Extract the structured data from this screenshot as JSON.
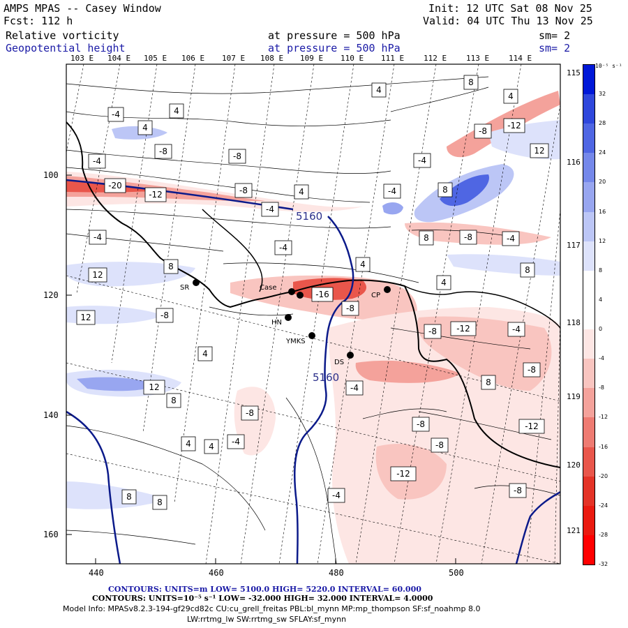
{
  "header": {
    "title": "AMPS MPAS -- Casey Window",
    "fcst": "Fcst:  112 h",
    "init": "Init: 12 UTC Sat 08 Nov 25",
    "valid": "Valid: 04 UTC Thu 13 Nov 25",
    "fields": [
      {
        "name": "Relative vorticity",
        "level": "at pressure =  500 hPa",
        "sm": "sm= 2"
      },
      {
        "name": "Geopotential height",
        "level": "at pressure =  500 hPa",
        "sm": "sm= 2"
      }
    ]
  },
  "map": {
    "top_lon_labels": [
      "103 E",
      "104 E",
      "105 E",
      "106 E",
      "107 E",
      "108 E",
      "109 E",
      "110 E",
      "111 E",
      "112 E",
      "113 E",
      "114 E"
    ],
    "right_lon_labels": [
      "115 E",
      "116 E",
      "117 E",
      "118 E",
      "119 E",
      "120 E",
      "121 E"
    ],
    "x_ticks": [
      "440",
      "460",
      "480",
      "500"
    ],
    "y_ticks": [
      "100",
      "120",
      "140",
      "160"
    ],
    "stations": [
      "SR",
      "Case",
      "HN",
      "YMKS",
      "DS",
      "CP"
    ],
    "height_labels": [
      "5160",
      "5160"
    ],
    "vort_labels": [
      "-4",
      "4",
      "4",
      "8",
      "4",
      "-8",
      "-8",
      "-4",
      "-20",
      "-12",
      "-8",
      "4",
      "8",
      "-4",
      "-4",
      "-4",
      "4",
      "-8",
      "-12",
      "12",
      "12",
      "-8",
      "-4",
      "8",
      "-4",
      "8",
      "8",
      "4",
      "12",
      "-4",
      "4",
      "-16",
      "-8",
      "-8",
      "-12",
      "-4",
      "4",
      "-8",
      "-8",
      "-4",
      "-4",
      "-8",
      "-12",
      "8",
      "4",
      "4",
      "12",
      "8",
      "-8",
      "8",
      "-4",
      "-8",
      "-12",
      "8",
      "-8"
    ]
  },
  "colorbar": {
    "unit": "10⁻⁵ s⁻¹",
    "labels": [
      "32",
      "28",
      "24",
      "20",
      "16",
      "12",
      "8",
      "4",
      "0",
      "-4",
      "-8",
      "-12",
      "-16",
      "-20",
      "-24",
      "-28",
      "-32"
    ],
    "colors": [
      "#0018d8",
      "#2f47dc",
      "#4f66e3",
      "#7588ea",
      "#98a6f0",
      "#bcc6f6",
      "#dde2fb",
      "#ffffff",
      "#ffffff",
      "#fde6e4",
      "#f9c5c0",
      "#f4a29b",
      "#ee7b72",
      "#e9564b",
      "#e43327",
      "#ea1a10",
      "#ff0000"
    ]
  },
  "footer": {
    "line1": "CONTOURS:  UNITS=m  LOW=  5100.0          HIGH=  5220.0          INTERVAL=   60.000",
    "line2": "CONTOURS:  UNITS=10⁻⁵ s⁻¹  LOW= -32.000          HIGH=  32.000          INTERVAL=   4.0000",
    "model1": "Model Info: MPASv8.2.3-194-gf29cd82c CU:cu_grell_freitas PBL:bl_mynn MP:mp_thompson SF:sf_noahmp 8.0",
    "model2": "LW:rrtmg_lw SW:rrtmg_sw SFLAY:sf_mynn"
  }
}
